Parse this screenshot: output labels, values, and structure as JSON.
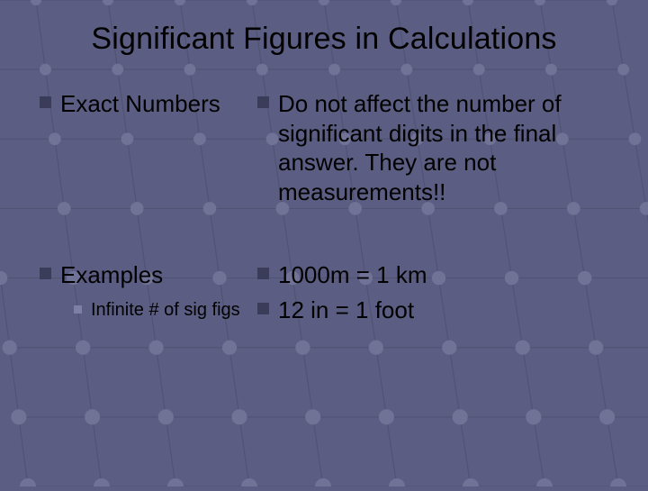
{
  "title": "Significant Figures in Calculations",
  "left": {
    "row1": "Exact Numbers",
    "row2": "Examples",
    "row2_sub": "Infinite # of sig figs"
  },
  "right": {
    "row1": "Do not affect the number of significant digits in the final answer.  They are not measurements!!",
    "row2a": "1000m = 1 km",
    "row2b": "12 in = 1 foot"
  },
  "colors": {
    "background": "#5b5e82",
    "bullet_primary": "#3a3c5a",
    "bullet_secondary": "#7d80a3",
    "grid_line": "#505374",
    "grid_node": "#707396",
    "text": "#000000"
  },
  "grid": {
    "cols": 9,
    "rows": 7,
    "skew": 10,
    "node_r": 6
  },
  "title_fontsize": 34,
  "body_fontsize": 26,
  "sub_fontsize": 20
}
